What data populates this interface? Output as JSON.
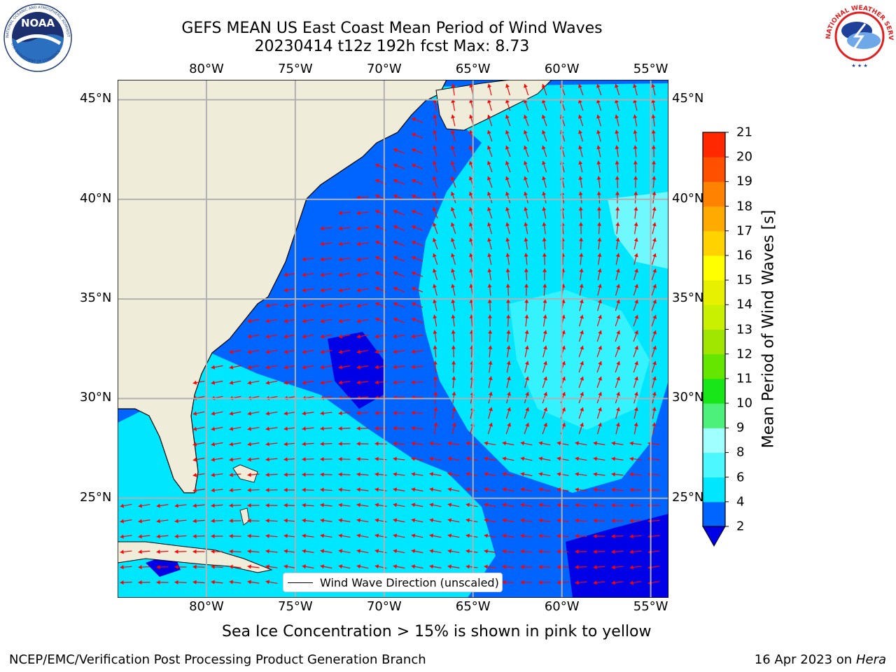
{
  "title": {
    "line1": "GEFS MEAN US East Coast Mean Period of Wind Waves",
    "line2": "20230414 t12z 192h fcst   Max: 8.73"
  },
  "logos": {
    "left": "noaa-logo",
    "left_text": "NOAA",
    "left_ring_top": "NATIONAL OCEANIC AND ATMOSPHERIC ADMINISTRATION",
    "left_ring_bottom": "U.S. DEPARTMENT OF COMMERCE",
    "right": "nws-logo",
    "right_ring": "NATIONAL WEATHER SERVICE"
  },
  "map": {
    "lon_ticks": [
      "80°W",
      "75°W",
      "70°W",
      "65°W",
      "60°W",
      "55°W"
    ],
    "lat_ticks": [
      "45°N",
      "40°N",
      "35°N",
      "30°N",
      "25°N"
    ],
    "lon_range": [
      -85,
      -54
    ],
    "lat_range": [
      20,
      46
    ],
    "lon_tick_values": [
      -80,
      -75,
      -70,
      -65,
      -60,
      -55
    ],
    "lat_tick_values": [
      45,
      40,
      35,
      30,
      25
    ],
    "grid": true,
    "land_color": "#efedda",
    "arrow_color": "#ff0000"
  },
  "legend": {
    "label": "Wind Wave Direction (unscaled)",
    "placement": "bottom-center"
  },
  "colorbar": {
    "label": "Mean Period of Wind Waves [s]",
    "ticks": [
      "2",
      "4",
      "6",
      "8",
      "9",
      "10",
      "11",
      "12",
      "13",
      "14",
      "15",
      "16",
      "17",
      "18",
      "19",
      "20",
      "21"
    ],
    "colors": [
      "#0064ff",
      "#00e6ff",
      "#4cf7ff",
      "#a0ffff",
      "#4cf07a",
      "#19e619",
      "#64e600",
      "#a0e600",
      "#c8f000",
      "#e6f000",
      "#ffff00",
      "#ffd200",
      "#ffaa00",
      "#ff8200",
      "#ff5000",
      "#ff2800",
      "#ff0000"
    ],
    "under_color": "#0000e6"
  },
  "caption": "Sea Ice Concentration > 15% is shown in pink to yellow",
  "footer": {
    "left": "NCEP/EMC/Verification Post Processing Product Generation Branch",
    "right_date": "16 Apr 2023 on ",
    "right_machine": "Hera"
  }
}
